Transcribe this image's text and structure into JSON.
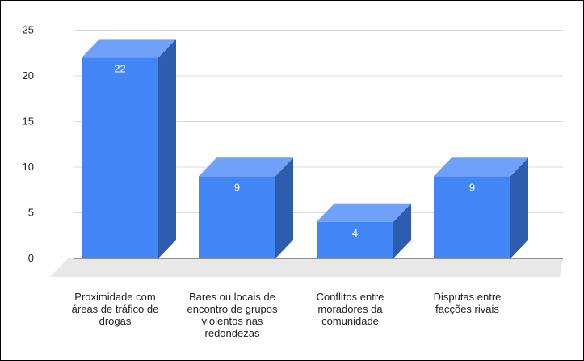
{
  "chart_data": {
    "type": "bar",
    "style": "3d",
    "title": "",
    "xlabel": "",
    "ylabel": "",
    "ylim": [
      0,
      25
    ],
    "yticks": [
      0,
      5,
      10,
      15,
      20,
      25
    ],
    "grid": true,
    "legend": "none",
    "categories": [
      [
        "Proximidade com",
        "áreas de tráfico de",
        "drogas"
      ],
      [
        "Bares ou locais de",
        "encontro de grupos",
        "violentos nas",
        "redondezas"
      ],
      [
        "Conflitos entre",
        "moradores da",
        "comunidade"
      ],
      [
        "Disputas entre",
        "facções rivais"
      ]
    ],
    "series": [
      {
        "values": [
          22,
          9,
          4,
          9
        ]
      }
    ],
    "colors": {
      "front": "#4285f4",
      "top": "#6ea1f7",
      "side": "#2e5db0",
      "floor": "#e8e8e8",
      "grid": "#d9d9d9",
      "baseline": "#333333"
    }
  }
}
